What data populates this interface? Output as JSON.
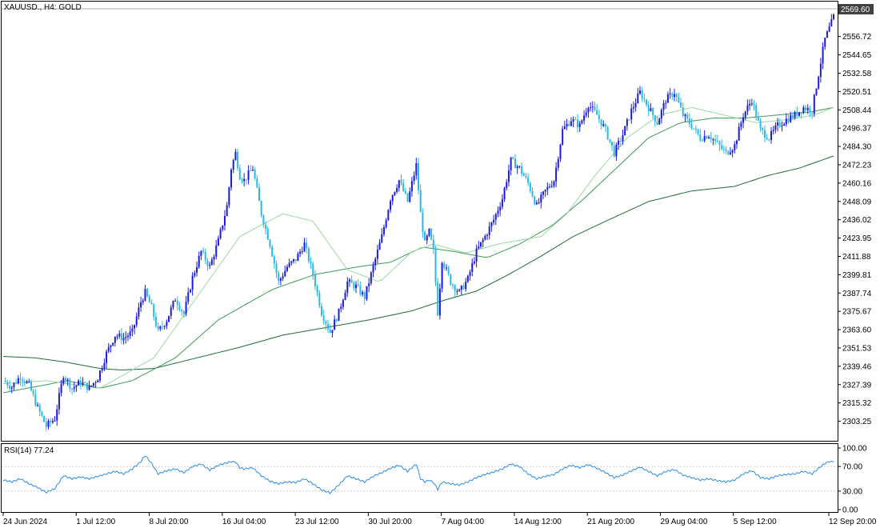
{
  "chart_data": [
    {
      "type": "candlestick",
      "title": "XAUUSD., H4: GOLD",
      "current_price": "2569.60",
      "ylim": [
        2293,
        2575
      ],
      "y_ticks": [
        "2556.72",
        "2544.65",
        "2532.58",
        "2520.51",
        "2508.44",
        "2496.37",
        "2484.30",
        "2472.23",
        "2460.16",
        "2448.09",
        "2436.02",
        "2423.95",
        "2411.88",
        "2399.81",
        "2387.74",
        "2375.67",
        "2363.60",
        "2351.53",
        "2339.46",
        "2327.39",
        "2315.32",
        "2303.25"
      ],
      "x_ticks": [
        "24 Jun 2024",
        "1 Jul 12:00",
        "8 Jul 20:00",
        "16 Jul 04:00",
        "23 Jul 12:00",
        "30 Jul 20:00",
        "7 Aug 04:00",
        "14 Aug 12:00",
        "21 Aug 20:00",
        "29 Aug 04:00",
        "5 Sep 12:00",
        "12 Sep 20:00"
      ],
      "grid": false,
      "colors": {
        "bull": "#1a1adc",
        "bear": "#2ab8e6",
        "ma_fast": "#9ad8a8",
        "ma_mid": "#3c9a55",
        "ma_slow": "#1e6b3a"
      },
      "close_path": [
        [
          0,
          2330
        ],
        [
          4,
          2326
        ],
        [
          8,
          2333
        ],
        [
          12,
          2327
        ],
        [
          16,
          2312
        ],
        [
          20,
          2300
        ],
        [
          24,
          2305
        ],
        [
          28,
          2334
        ],
        [
          32,
          2325
        ],
        [
          36,
          2329
        ],
        [
          40,
          2325
        ],
        [
          44,
          2332
        ],
        [
          48,
          2348
        ],
        [
          52,
          2360
        ],
        [
          56,
          2358
        ],
        [
          60,
          2362
        ],
        [
          64,
          2382
        ],
        [
          66,
          2388
        ],
        [
          69,
          2378
        ],
        [
          72,
          2362
        ],
        [
          76,
          2370
        ],
        [
          80,
          2384
        ],
        [
          84,
          2374
        ],
        [
          88,
          2398
        ],
        [
          92,
          2415
        ],
        [
          96,
          2405
        ],
        [
          100,
          2422
        ],
        [
          104,
          2445
        ],
        [
          106,
          2470
        ],
        [
          108,
          2480
        ],
        [
          110,
          2465
        ],
        [
          112,
          2462
        ],
        [
          116,
          2470
        ],
        [
          120,
          2440
        ],
        [
          124,
          2420
        ],
        [
          128,
          2395
        ],
        [
          132,
          2405
        ],
        [
          136,
          2410
        ],
        [
          140,
          2420
        ],
        [
          144,
          2400
        ],
        [
          148,
          2375
        ],
        [
          152,
          2362
        ],
        [
          156,
          2375
        ],
        [
          160,
          2395
        ],
        [
          164,
          2392
        ],
        [
          168,
          2385
        ],
        [
          172,
          2405
        ],
        [
          176,
          2425
        ],
        [
          180,
          2450
        ],
        [
          184,
          2462
        ],
        [
          188,
          2448
        ],
        [
          192,
          2472
        ],
        [
          194,
          2440
        ],
        [
          196,
          2420
        ],
        [
          198,
          2428
        ],
        [
          200,
          2415
        ],
        [
          202,
          2375
        ],
        [
          204,
          2410
        ],
        [
          208,
          2395
        ],
        [
          212,
          2388
        ],
        [
          216,
          2397
        ],
        [
          220,
          2415
        ],
        [
          224,
          2425
        ],
        [
          228,
          2436
        ],
        [
          232,
          2450
        ],
        [
          236,
          2475
        ],
        [
          240,
          2470
        ],
        [
          244,
          2460
        ],
        [
          248,
          2445
        ],
        [
          252,
          2455
        ],
        [
          256,
          2462
        ],
        [
          260,
          2495
        ],
        [
          264,
          2502
        ],
        [
          268,
          2498
        ],
        [
          272,
          2512
        ],
        [
          276,
          2505
        ],
        [
          280,
          2495
        ],
        [
          284,
          2480
        ],
        [
          288,
          2492
        ],
        [
          292,
          2508
        ],
        [
          296,
          2520
        ],
        [
          300,
          2510
        ],
        [
          304,
          2500
        ],
        [
          308,
          2515
        ],
        [
          312,
          2520
        ],
        [
          316,
          2505
        ],
        [
          320,
          2498
        ],
        [
          324,
          2490
        ],
        [
          328,
          2492
        ],
        [
          332,
          2486
        ],
        [
          336,
          2480
        ],
        [
          340,
          2485
        ],
        [
          344,
          2505
        ],
        [
          348,
          2515
        ],
        [
          352,
          2495
        ],
        [
          356,
          2490
        ],
        [
          360,
          2498
        ],
        [
          364,
          2502
        ],
        [
          368,
          2505
        ],
        [
          372,
          2510
        ],
        [
          376,
          2508
        ],
        [
          380,
          2540
        ],
        [
          382,
          2555
        ],
        [
          384,
          2562
        ],
        [
          386,
          2569.6
        ]
      ],
      "ma_fast": [
        [
          0,
          2328
        ],
        [
          20,
          2330
        ],
        [
          45,
          2325
        ],
        [
          70,
          2345
        ],
        [
          90,
          2385
        ],
        [
          110,
          2425
        ],
        [
          130,
          2440
        ],
        [
          144,
          2435
        ],
        [
          160,
          2403
        ],
        [
          175,
          2395
        ],
        [
          190,
          2415
        ],
        [
          200,
          2420
        ],
        [
          215,
          2414
        ],
        [
          230,
          2420
        ],
        [
          250,
          2425
        ],
        [
          262,
          2440
        ],
        [
          275,
          2465
        ],
        [
          290,
          2490
        ],
        [
          305,
          2505
        ],
        [
          320,
          2510
        ],
        [
          335,
          2505
        ],
        [
          350,
          2500
        ],
        [
          365,
          2502
        ],
        [
          377,
          2505
        ],
        [
          386,
          2510
        ]
      ],
      "ma_mid": [
        [
          0,
          2322
        ],
        [
          30,
          2330
        ],
        [
          45,
          2325
        ],
        [
          60,
          2330
        ],
        [
          80,
          2345
        ],
        [
          100,
          2370
        ],
        [
          125,
          2390
        ],
        [
          145,
          2400
        ],
        [
          165,
          2405
        ],
        [
          180,
          2408
        ],
        [
          195,
          2418
        ],
        [
          210,
          2415
        ],
        [
          225,
          2411
        ],
        [
          240,
          2420
        ],
        [
          255,
          2432
        ],
        [
          270,
          2450
        ],
        [
          285,
          2470
        ],
        [
          300,
          2490
        ],
        [
          315,
          2500
        ],
        [
          330,
          2503
        ],
        [
          345,
          2503
        ],
        [
          360,
          2505
        ],
        [
          375,
          2507
        ],
        [
          386,
          2510
        ]
      ],
      "ma_slow": [
        [
          0,
          2346
        ],
        [
          15,
          2345
        ],
        [
          30,
          2342
        ],
        [
          45,
          2338
        ],
        [
          55,
          2337
        ],
        [
          70,
          2338
        ],
        [
          90,
          2345
        ],
        [
          110,
          2352
        ],
        [
          130,
          2360
        ],
        [
          150,
          2365
        ],
        [
          170,
          2370
        ],
        [
          190,
          2376
        ],
        [
          205,
          2383
        ],
        [
          220,
          2389
        ],
        [
          235,
          2400
        ],
        [
          250,
          2412
        ],
        [
          265,
          2425
        ],
        [
          280,
          2435
        ],
        [
          300,
          2448
        ],
        [
          320,
          2455
        ],
        [
          340,
          2458
        ],
        [
          355,
          2465
        ],
        [
          370,
          2470
        ],
        [
          386,
          2478
        ]
      ]
    },
    {
      "type": "line",
      "title": "RSI(14) 77.24",
      "ylim": [
        0,
        100
      ],
      "y_ticks": [
        "100.00",
        "70.00",
        "30.00",
        "0.00"
      ],
      "levels": [
        70,
        30
      ],
      "series": [
        {
          "values": [
            [
              0,
              48
            ],
            [
              4,
              45
            ],
            [
              8,
              50
            ],
            [
              12,
              42
            ],
            [
              16,
              36
            ],
            [
              20,
              28
            ],
            [
              24,
              34
            ],
            [
              28,
              55
            ],
            [
              32,
              50
            ],
            [
              36,
              53
            ],
            [
              40,
              50
            ],
            [
              44,
              54
            ],
            [
              48,
              58
            ],
            [
              52,
              62
            ],
            [
              56,
              58
            ],
            [
              60,
              66
            ],
            [
              64,
              78
            ],
            [
              66,
              88
            ],
            [
              69,
              75
            ],
            [
              72,
              58
            ],
            [
              76,
              63
            ],
            [
              80,
              66
            ],
            [
              84,
              60
            ],
            [
              88,
              70
            ],
            [
              92,
              74
            ],
            [
              96,
              64
            ],
            [
              100,
              72
            ],
            [
              104,
              76
            ],
            [
              106,
              78
            ],
            [
              108,
              77
            ],
            [
              110,
              68
            ],
            [
              112,
              66
            ],
            [
              116,
              68
            ],
            [
              120,
              55
            ],
            [
              124,
              46
            ],
            [
              128,
              42
            ],
            [
              132,
              45
            ],
            [
              136,
              44
            ],
            [
              140,
              50
            ],
            [
              144,
              42
            ],
            [
              148,
              32
            ],
            [
              152,
              27
            ],
            [
              156,
              40
            ],
            [
              160,
              55
            ],
            [
              164,
              50
            ],
            [
              168,
              45
            ],
            [
              172,
              54
            ],
            [
              176,
              60
            ],
            [
              180,
              67
            ],
            [
              184,
              72
            ],
            [
              188,
              62
            ],
            [
              192,
              74
            ],
            [
              194,
              50
            ],
            [
              196,
              45
            ],
            [
              198,
              48
            ],
            [
              200,
              44
            ],
            [
              202,
              33
            ],
            [
              204,
              45
            ],
            [
              208,
              42
            ],
            [
              212,
              40
            ],
            [
              216,
              45
            ],
            [
              220,
              52
            ],
            [
              224,
              57
            ],
            [
              228,
              61
            ],
            [
              232,
              66
            ],
            [
              236,
              74
            ],
            [
              240,
              70
            ],
            [
              244,
              58
            ],
            [
              248,
              50
            ],
            [
              252,
              54
            ],
            [
              256,
              57
            ],
            [
              260,
              66
            ],
            [
              264,
              72
            ],
            [
              268,
              68
            ],
            [
              272,
              73
            ],
            [
              276,
              67
            ],
            [
              280,
              60
            ],
            [
              284,
              52
            ],
            [
              288,
              56
            ],
            [
              292,
              63
            ],
            [
              296,
              69
            ],
            [
              300,
              62
            ],
            [
              304,
              55
            ],
            [
              308,
              62
            ],
            [
              312,
              65
            ],
            [
              316,
              56
            ],
            [
              320,
              52
            ],
            [
              324,
              48
            ],
            [
              328,
              50
            ],
            [
              332,
              47
            ],
            [
              336,
              45
            ],
            [
              340,
              48
            ],
            [
              344,
              58
            ],
            [
              348,
              63
            ],
            [
              352,
              52
            ],
            [
              356,
              50
            ],
            [
              360,
              55
            ],
            [
              364,
              57
            ],
            [
              368,
              58
            ],
            [
              372,
              62
            ],
            [
              376,
              58
            ],
            [
              380,
              70
            ],
            [
              382,
              75
            ],
            [
              384,
              78
            ],
            [
              386,
              77.24
            ]
          ]
        }
      ]
    }
  ]
}
